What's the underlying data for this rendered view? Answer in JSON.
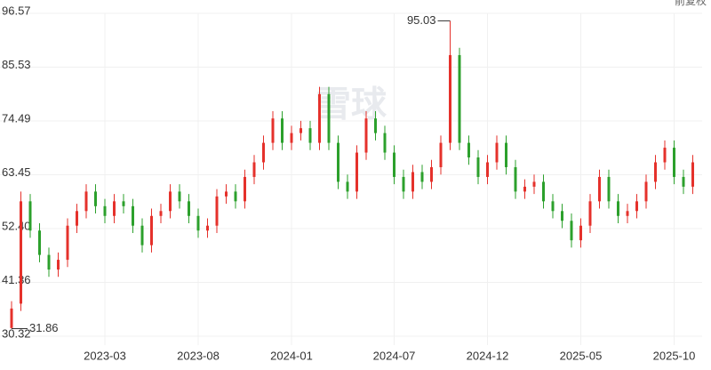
{
  "chart_data": {
    "type": "ohlc",
    "watermark": "雪球",
    "adjust_label": "前复权",
    "categories": [
      null,
      null,
      null,
      null,
      null,
      null,
      null,
      null,
      null,
      null,
      "2023-03",
      null,
      null,
      null,
      null,
      null,
      null,
      null,
      null,
      null,
      "2023-08",
      null,
      null,
      null,
      null,
      null,
      null,
      null,
      null,
      null,
      "2024-01",
      null,
      null,
      null,
      null,
      null,
      null,
      null,
      null,
      null,
      null,
      "2024-07",
      null,
      null,
      null,
      null,
      null,
      null,
      null,
      null,
      null,
      "2024-12",
      null,
      null,
      null,
      null,
      null,
      null,
      null,
      null,
      null,
      "2025-05",
      null,
      null,
      null,
      null,
      null,
      null,
      null,
      null,
      null,
      "2025-10",
      null,
      null
    ],
    "open": [
      32,
      37,
      58,
      52,
      47,
      44,
      46,
      53,
      56,
      60,
      57,
      55,
      58,
      57,
      53,
      49,
      55,
      56,
      60,
      58,
      55,
      52,
      53,
      59,
      60,
      58,
      63,
      66,
      70,
      75,
      70,
      72,
      73,
      70,
      80,
      70,
      62,
      60,
      68,
      75,
      72,
      68,
      63,
      60,
      64,
      62,
      65,
      70,
      88,
      70,
      67,
      63,
      66,
      70,
      65,
      60,
      61,
      62,
      58,
      56,
      54,
      50,
      53,
      58,
      63,
      58,
      55,
      56,
      58,
      62,
      66,
      69,
      63,
      61
    ],
    "high": [
      37.5,
      60,
      59.5,
      53.5,
      48.5,
      47.5,
      54.5,
      57.5,
      61.5,
      61.5,
      58.5,
      59.5,
      59.5,
      58.5,
      54.5,
      56.5,
      57.5,
      61.5,
      61.5,
      59.5,
      56.5,
      54.5,
      60.5,
      61.5,
      61.5,
      64.5,
      67.5,
      71.5,
      76.5,
      76.5,
      73.5,
      74.5,
      74.5,
      81.5,
      81.5,
      71.5,
      63.5,
      69.5,
      76.5,
      76.5,
      73.5,
      69.5,
      64.5,
      65.5,
      65.5,
      66.5,
      71.5,
      95.03,
      89.5,
      71.5,
      68.5,
      67.5,
      71.5,
      71.5,
      66.5,
      62.5,
      63.5,
      63.5,
      59.5,
      57.5,
      55.5,
      54.5,
      59.5,
      64.5,
      64.5,
      59.5,
      57.5,
      59.5,
      63.5,
      67.5,
      70.5,
      70.5,
      64.5,
      67.5
    ],
    "low": [
      31.86,
      35.5,
      50.5,
      45.5,
      42.5,
      42.5,
      44.5,
      51.5,
      54.5,
      55.5,
      53.5,
      53.5,
      55.5,
      51.5,
      47.5,
      47.5,
      53.5,
      54.5,
      56.5,
      53.5,
      50.5,
      50.5,
      51.5,
      57.5,
      56.5,
      56.5,
      61.5,
      64.5,
      68.5,
      68.5,
      68.5,
      70.5,
      68.5,
      68.5,
      68.5,
      60.5,
      58.5,
      58.5,
      66.5,
      70.5,
      66.5,
      61.5,
      58.5,
      58.5,
      60.5,
      60.5,
      63.5,
      68.5,
      68.5,
      65.5,
      61.5,
      61.5,
      64.5,
      63.5,
      58.5,
      58.5,
      59.5,
      56.5,
      54.5,
      52.5,
      48.5,
      48.5,
      51.5,
      56.5,
      56.5,
      53.5,
      53.5,
      54.5,
      56.5,
      60.5,
      64.5,
      61.5,
      59.5,
      59.5
    ],
    "close": [
      36,
      58,
      52,
      47,
      44,
      46,
      53,
      56,
      60,
      57,
      55,
      58,
      57,
      53,
      49,
      55,
      56,
      60,
      58,
      55,
      52,
      53,
      59,
      60,
      58,
      63,
      66,
      70,
      75,
      70,
      72,
      73,
      70,
      80,
      70,
      62,
      60,
      68,
      75,
      72,
      68,
      63,
      60,
      64,
      62,
      65,
      70,
      88,
      70,
      67,
      63,
      66,
      70,
      65,
      60,
      61,
      62,
      58,
      56,
      54,
      50,
      53,
      58,
      63,
      58,
      55,
      56,
      58,
      62,
      66,
      69,
      63,
      61,
      66
    ],
    "up_color": "#e5312b",
    "down_color": "#2ca02c",
    "max_label": 95.03,
    "min_label": 31.86,
    "ylim": [
      30.32,
      96.57
    ],
    "yticks": [
      30.32,
      41.36,
      {
        "value": 52.4,
        "label": "52.40"
      },
      63.45,
      74.49,
      85.53,
      96.57
    ],
    "grid": true
  }
}
